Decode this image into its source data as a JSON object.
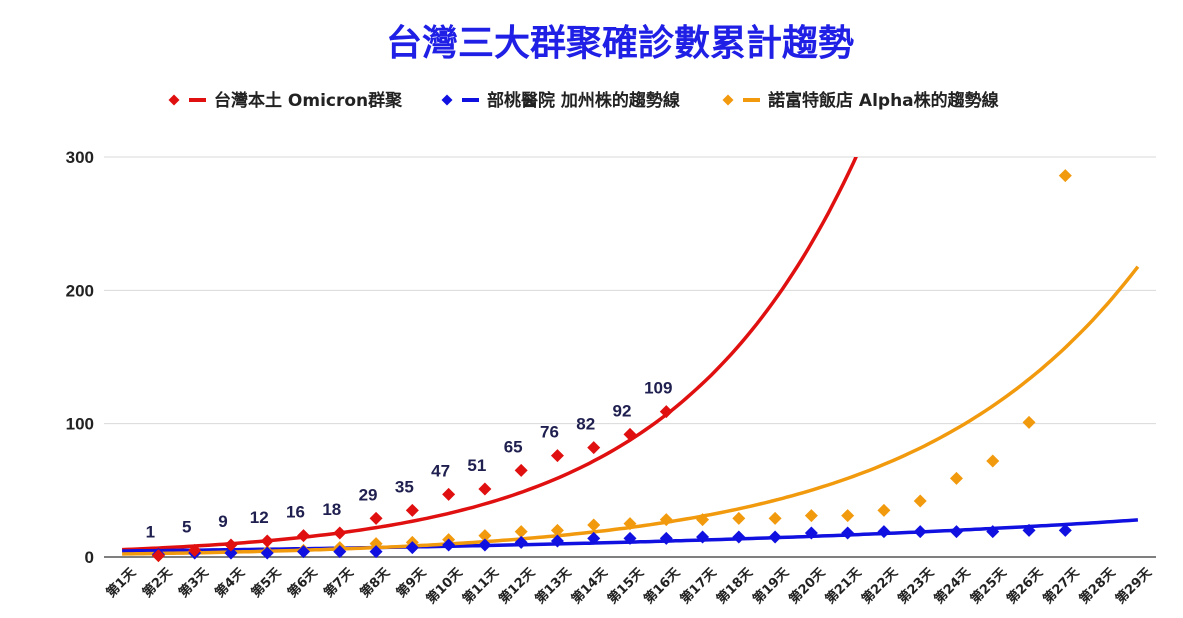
{
  "chart_data": {
    "type": "scatter",
    "title": "台灣三大群聚確診數累計趨勢",
    "xlabel": "",
    "ylabel": "",
    "ylim": [
      0,
      300
    ],
    "yticks": [
      0,
      100,
      200,
      300
    ],
    "grid": true,
    "legend_position": "top",
    "categories": [
      "第1天",
      "第2天",
      "第3天",
      "第4天",
      "第5天",
      "第6天",
      "第7天",
      "第8天",
      "第9天",
      "第10天",
      "第11天",
      "第12天",
      "第13天",
      "第14天",
      "第15天",
      "第16天",
      "第17天",
      "第18天",
      "第19天",
      "第20天",
      "第21天",
      "第22天",
      "第23天",
      "第24天",
      "第25天",
      "第26天",
      "第27天",
      "第28天",
      "第29天"
    ],
    "series": [
      {
        "name": "台灣本土 Omicron群聚",
        "color": "#e01010",
        "values": [
          null,
          1,
          5,
          9,
          12,
          16,
          18,
          29,
          35,
          47,
          51,
          65,
          76,
          82,
          92,
          109
        ],
        "data_labels": true,
        "trendline": {
          "type": "exponential",
          "a": 5.53,
          "b": 0.1974
        }
      },
      {
        "name": "部桃醫院 加州株的趨勢線",
        "color": "#1010e0",
        "values": [
          null,
          2,
          3,
          3,
          3,
          4,
          4,
          4,
          7,
          9,
          9,
          11,
          12,
          14,
          14,
          14,
          15,
          15,
          15,
          18,
          18,
          19,
          19,
          19,
          19,
          20,
          20
        ],
        "data_labels": false,
        "trendline": {
          "type": "exponential",
          "a": 4.49,
          "b": 0.0651
        }
      },
      {
        "name": "諾富特飯店 Alpha株的趨勢線",
        "color": "#f29a0e",
        "values": [
          null,
          1,
          3,
          3,
          4,
          5,
          7,
          10,
          11,
          13,
          16,
          19,
          20,
          24,
          25,
          28,
          28,
          29,
          29,
          31,
          31,
          35,
          42,
          59,
          72,
          101,
          286
        ],
        "data_labels": false,
        "trendline": {
          "type": "exponential",
          "a": 2.25,
          "b": 0.1633
        }
      }
    ]
  }
}
